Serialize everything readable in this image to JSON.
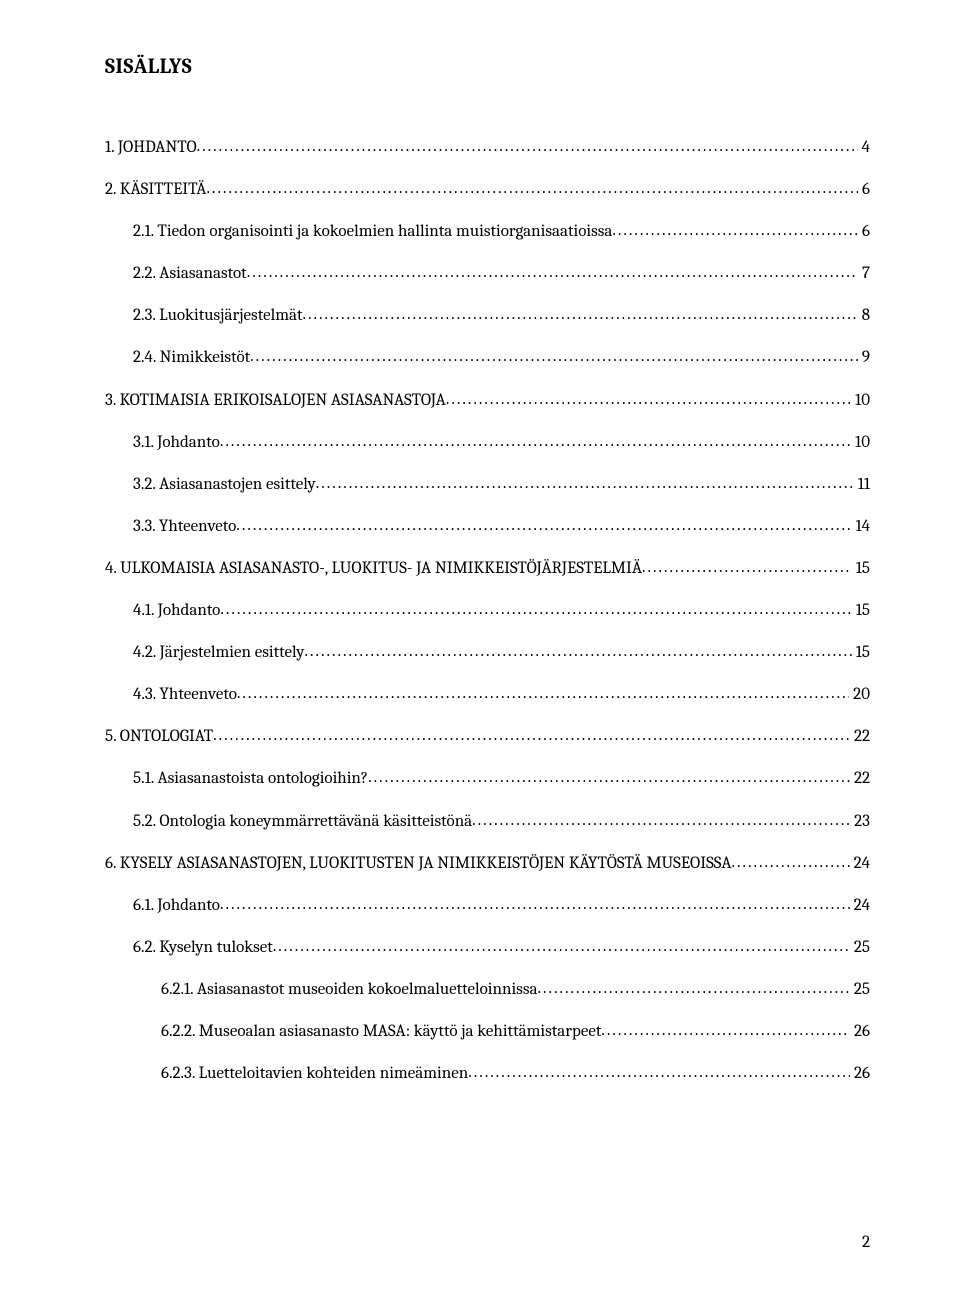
{
  "heading": "SISÄLLYS",
  "page_number": "2",
  "colors": {
    "text": "#000000",
    "bg": "#ffffff"
  },
  "typography": {
    "heading_fontsize_pt": 16,
    "body_fontsize_pt": 12.5,
    "font_family": "Cambria"
  },
  "toc": [
    {
      "label": "1. JOHDANTO",
      "page": "4",
      "level": 0,
      "gap_after": true
    },
    {
      "label": "2. KÄSITTEITÄ",
      "page": "6",
      "level": 0,
      "gap_after": true
    },
    {
      "label": "2.1. Tiedon organisointi ja kokoelmien hallinta muistiorganisaatioissa",
      "page": "6",
      "level": 1,
      "gap_after": true
    },
    {
      "label": "2.2. Asiasanastot",
      "page": "7",
      "level": 1,
      "gap_after": true
    },
    {
      "label": "2.3. Luokitusjärjestelmät",
      "page": "8",
      "level": 1,
      "gap_after": true
    },
    {
      "label": "2.4. Nimikkeistöt",
      "page": "9",
      "level": 1,
      "gap_after": true
    },
    {
      "label": "3. KOTIMAISIA ERIKOISALOJEN ASIASANASTOJA",
      "page": "10",
      "level": 0,
      "gap_after": true
    },
    {
      "label": "3.1. Johdanto",
      "page": "10",
      "level": 1,
      "gap_after": true
    },
    {
      "label": "3.2. Asiasanastojen esittely",
      "page": "11",
      "level": 1,
      "gap_after": true
    },
    {
      "label": "3.3. Yhteenveto",
      "page": "14",
      "level": 1,
      "gap_after": true
    },
    {
      "label": "4. ULKOMAISIA ASIASANASTO-, LUOKITUS- JA NIMIKKEISTÖJÄRJESTELMIÄ",
      "page": "15",
      "level": 0,
      "gap_after": true
    },
    {
      "label": "4.1. Johdanto",
      "page": "15",
      "level": 1,
      "gap_after": true
    },
    {
      "label": "4.2. Järjestelmien esittely",
      "page": "15",
      "level": 1,
      "gap_after": true
    },
    {
      "label": "4.3. Yhteenveto",
      "page": "20",
      "level": 1,
      "gap_after": true
    },
    {
      "label": "5. ONTOLOGIAT",
      "page": "22",
      "level": 0,
      "gap_after": true
    },
    {
      "label": "5.1. Asiasanastoista ontologioihin?",
      "page": "22",
      "level": 1,
      "gap_after": true
    },
    {
      "label": "5.2. Ontologia koneymmärrettävänä käsitteistönä",
      "page": "23",
      "level": 1,
      "gap_after": true
    },
    {
      "label": "6. KYSELY ASIASANASTOJEN, LUOKITUSTEN JA NIMIKKEISTÖJEN KÄYTÖSTÄ MUSEOISSA",
      "page": "24",
      "level": 0,
      "gap_after": true
    },
    {
      "label": "6.1. Johdanto",
      "page": "24",
      "level": 1,
      "gap_after": true
    },
    {
      "label": "6.2. Kyselyn tulokset",
      "page": "25",
      "level": 1,
      "gap_after": true
    },
    {
      "label": "6.2.1. Asiasanastot museoiden kokoelmaluetteloinnissa",
      "page": "25",
      "level": 2,
      "gap_after": true
    },
    {
      "label": "6.2.2. Museoalan asiasanasto MASA: käyttö ja kehittämistarpeet",
      "page": "26",
      "level": 2,
      "gap_after": true
    },
    {
      "label": "6.2.3. Luetteloitavien kohteiden nimeäminen",
      "page": "26",
      "level": 2,
      "gap_after": false
    }
  ]
}
